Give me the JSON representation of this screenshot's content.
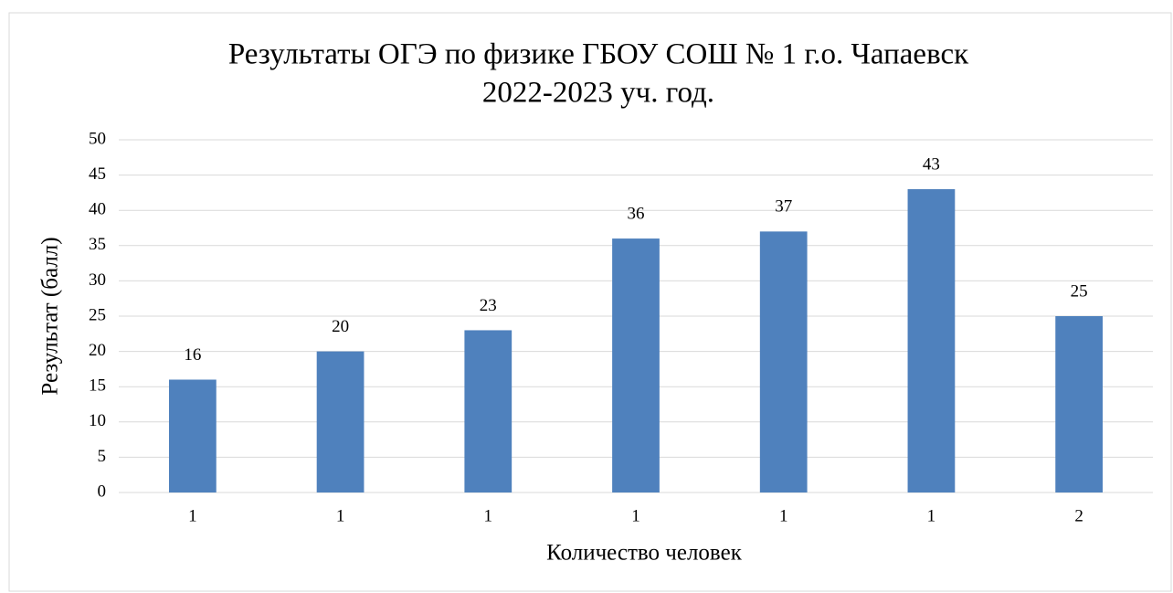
{
  "chart_data": {
    "type": "bar",
    "title": [
      "Результаты ОГЭ по физике ГБОУ СОШ № 1 г.о. Чапаевск",
      "2022-2023 уч. год."
    ],
    "x_label": "Количество человек",
    "y_label": "Результат (балл)",
    "categories": [
      "1",
      "1",
      "1",
      "1",
      "1",
      "1",
      "2"
    ],
    "values": [
      16,
      20,
      23,
      36,
      37,
      43,
      25
    ],
    "color": "#4f81bd",
    "ylim": [
      0,
      50
    ],
    "yticks": [
      0,
      5,
      10,
      15,
      20,
      25,
      30,
      35,
      40,
      45,
      50
    ],
    "grid": true
  }
}
